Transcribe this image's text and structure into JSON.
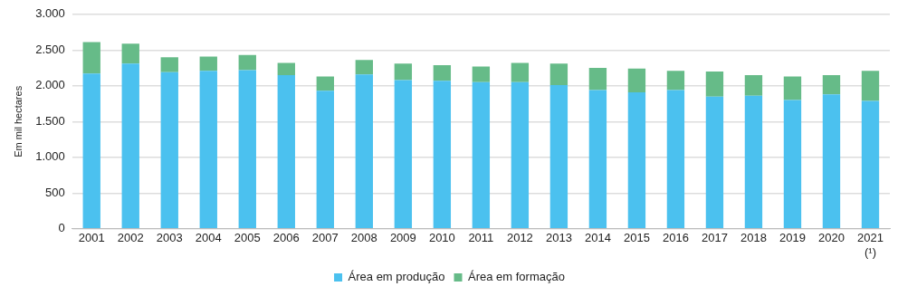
{
  "chart_data": {
    "type": "bar",
    "stacked": true,
    "ylabel": "Em mil hectares",
    "categories": [
      "2001",
      "2002",
      "2003",
      "2004",
      "2005",
      "2006",
      "2007",
      "2008",
      "2009",
      "2010",
      "2011",
      "2012",
      "2013",
      "2014",
      "2015",
      "2016",
      "2017",
      "2018",
      "2019",
      "2020",
      "2021\n(¹)"
    ],
    "series": [
      {
        "name": "Área em produção",
        "color": "#4bc1ef",
        "values": [
          2170,
          2310,
          2190,
          2210,
          2220,
          2150,
          1930,
          2160,
          2080,
          2070,
          2050,
          2050,
          2010,
          1940,
          1910,
          1940,
          1850,
          1860,
          1800,
          1880,
          1790
        ]
      },
      {
        "name": "Área em formação",
        "color": "#66bb88",
        "values": [
          440,
          280,
          210,
          200,
          210,
          170,
          200,
          200,
          230,
          220,
          220,
          270,
          300,
          310,
          330,
          270,
          350,
          290,
          330,
          270,
          420
        ]
      }
    ],
    "ylim": [
      0,
      3000
    ],
    "yticks": [
      {
        "value": 0,
        "label": "0"
      },
      {
        "value": 500,
        "label": "500"
      },
      {
        "value": 1000,
        "label": "1.000"
      },
      {
        "value": 1500,
        "label": "1.500"
      },
      {
        "value": 2000,
        "label": "2.000"
      },
      {
        "value": 2500,
        "label": "2.500"
      },
      {
        "value": 3000,
        "label": "3.000"
      }
    ],
    "grid": "y",
    "legend": "bottom"
  }
}
